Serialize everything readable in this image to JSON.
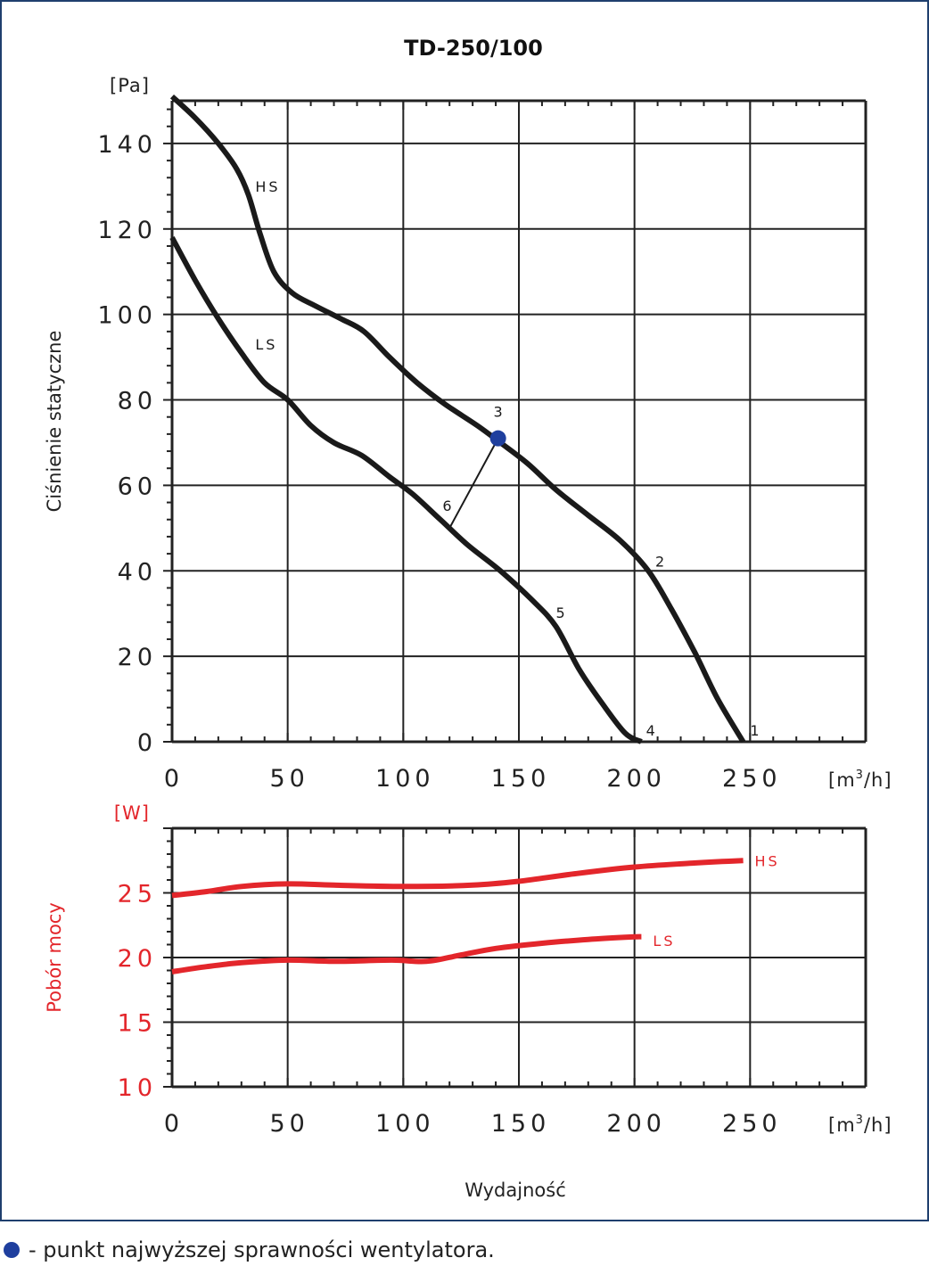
{
  "title": "TD-250/100",
  "colors": {
    "frame": "#1f3f6e",
    "ink": "#1a1a1a",
    "power": "#e3262b",
    "bep": "#1f3f9e"
  },
  "chart_data": [
    {
      "type": "line",
      "title": "TD-250/100",
      "xlabel": "",
      "xunit": "[m³/h]",
      "xunit_base": "[m",
      "xunit_sup": "3",
      "xunit_end": "/h]",
      "ylabel": "Ciśnienie statyczne",
      "yunit": "[Pa]",
      "xlim": [
        0,
        300
      ],
      "ylim": [
        0,
        150
      ],
      "xticks": [
        0,
        50,
        100,
        150,
        200,
        250
      ],
      "xtick_labels": [
        "0",
        "50",
        "100",
        "150",
        "200",
        "250"
      ],
      "yticks": [
        0,
        20,
        40,
        60,
        80,
        100,
        120,
        140
      ],
      "ytick_labels": [
        "0",
        "20",
        "40",
        "60",
        "80",
        "100",
        "120",
        "140"
      ],
      "grid": true,
      "series": [
        {
          "name": "HS",
          "points": [
            [
              0,
              151
            ],
            [
              10,
              146
            ],
            [
              20,
              140
            ],
            [
              28,
              134
            ],
            [
              33,
              128
            ],
            [
              38,
              119
            ],
            [
              44,
              110
            ],
            [
              52,
              105
            ],
            [
              62,
              102
            ],
            [
              73,
              99
            ],
            [
              83,
              96
            ],
            [
              94,
              90
            ],
            [
              106,
              84
            ],
            [
              118,
              79
            ],
            [
              132,
              74
            ],
            [
              142,
              70
            ],
            [
              154,
              65
            ],
            [
              166,
              59
            ],
            [
              180,
              53
            ],
            [
              194,
              47
            ],
            [
              206,
              40
            ],
            [
              216,
              31
            ],
            [
              226,
              21
            ],
            [
              236,
              10
            ],
            [
              247,
              0
            ]
          ]
        },
        {
          "name": "LS",
          "points": [
            [
              0,
              118
            ],
            [
              10,
              108
            ],
            [
              20,
              99
            ],
            [
              30,
              91
            ],
            [
              40,
              84
            ],
            [
              50,
              80
            ],
            [
              60,
              74
            ],
            [
              70,
              70
            ],
            [
              82,
              67
            ],
            [
              94,
              62
            ],
            [
              104,
              58
            ],
            [
              116,
              52
            ],
            [
              128,
              46
            ],
            [
              142,
              40
            ],
            [
              156,
              33
            ],
            [
              166,
              27
            ],
            [
              176,
              17
            ],
            [
              186,
              9
            ],
            [
              196,
              2
            ],
            [
              203,
              0
            ]
          ]
        }
      ],
      "annotations": [
        {
          "text": "1",
          "x": 250,
          "y": 1.5
        },
        {
          "text": "2",
          "x": 209,
          "y": 41
        },
        {
          "text": "3",
          "x": 139,
          "y": 76
        },
        {
          "text": "4",
          "x": 205,
          "y": 1.5
        },
        {
          "text": "5",
          "x": 166,
          "y": 29
        },
        {
          "text": "6",
          "x": 117,
          "y": 54
        }
      ],
      "series_labels": [
        {
          "text": "HS",
          "x": 36,
          "y": 130
        },
        {
          "text": "LS",
          "x": 36,
          "y": 93
        }
      ],
      "best_efficiency_point": {
        "x": 141,
        "y": 71
      },
      "system_line": [
        [
          141,
          71
        ],
        [
          120,
          50
        ]
      ]
    },
    {
      "type": "line",
      "xlabel": "Wydajność",
      "xunit": "[m³/h]",
      "xunit_base": "[m",
      "xunit_sup": "3",
      "xunit_end": "/h]",
      "ylabel": "Pobór mocy",
      "yunit": "[W]",
      "xlim": [
        0,
        300
      ],
      "ylim": [
        10,
        30
      ],
      "xticks": [
        0,
        50,
        100,
        150,
        200,
        250
      ],
      "xtick_labels": [
        "0",
        "50",
        "100",
        "150",
        "200",
        "250"
      ],
      "yticks": [
        10,
        15,
        20,
        25
      ],
      "ytick_labels": [
        "10",
        "15",
        "20",
        "25"
      ],
      "grid": true,
      "series": [
        {
          "name": "HS",
          "points": [
            [
              0,
              24.8
            ],
            [
              15,
              25.1
            ],
            [
              30,
              25.5
            ],
            [
              50,
              25.7
            ],
            [
              70,
              25.6
            ],
            [
              100,
              25.5
            ],
            [
              130,
              25.6
            ],
            [
              150,
              25.9
            ],
            [
              175,
              26.5
            ],
            [
              200,
              27.0
            ],
            [
              225,
              27.3
            ],
            [
              247,
              27.5
            ]
          ]
        },
        {
          "name": "LS",
          "points": [
            [
              0,
              18.9
            ],
            [
              15,
              19.3
            ],
            [
              30,
              19.6
            ],
            [
              50,
              19.8
            ],
            [
              70,
              19.7
            ],
            [
              95,
              19.8
            ],
            [
              110,
              19.7
            ],
            [
              125,
              20.2
            ],
            [
              140,
              20.7
            ],
            [
              160,
              21.1
            ],
            [
              180,
              21.4
            ],
            [
              200,
              21.6
            ],
            [
              203,
              21.6
            ]
          ]
        }
      ],
      "series_labels": [
        {
          "text": "HS",
          "x": 252,
          "y": 27.5
        },
        {
          "text": "LS",
          "x": 208,
          "y": 21.3
        }
      ]
    }
  ],
  "footnote": "- punkt najwyższej sprawności wentylatora."
}
